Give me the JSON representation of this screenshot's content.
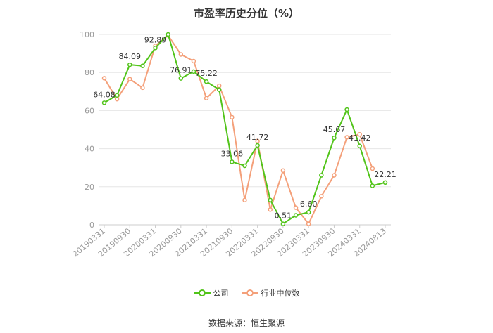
{
  "chart_data": {
    "type": "line",
    "title": "市盈率历史分位（%）",
    "ylim": [
      0,
      100
    ],
    "yticks": [
      "0",
      "20",
      "40",
      "60",
      "80",
      "100"
    ],
    "x_labels": [
      "20190331",
      "20190930",
      "20200331",
      "20200930",
      "20210331",
      "20210930",
      "20220331",
      "20220930",
      "20230331",
      "20230930",
      "20240331",
      "20240813"
    ],
    "x": [
      "20190331",
      "20190630",
      "20190930",
      "20191231",
      "20200331",
      "20200630",
      "20200930",
      "20201231",
      "20210331",
      "20210630",
      "20210930",
      "20211231",
      "20220331",
      "20220630",
      "20220930",
      "20221231",
      "20230331",
      "20230630",
      "20230930",
      "20231231",
      "20240331",
      "20240630",
      "20240813"
    ],
    "series": [
      {
        "name": "公司",
        "color": "#52c41a",
        "values": [
          64.08,
          68,
          84.09,
          83.5,
          92.89,
          100,
          76.91,
          80.5,
          75.22,
          71,
          33.06,
          31,
          41.72,
          13,
          0.51,
          5,
          6.6,
          26,
          45.67,
          60.5,
          41.42,
          20.5,
          22.21
        ]
      },
      {
        "name": "行业中位数",
        "color": "#f4a07a",
        "values": [
          77,
          66,
          76.5,
          72,
          94,
          99.5,
          89.5,
          86,
          66.5,
          73,
          56.5,
          13,
          44,
          8,
          28.5,
          9,
          0.5,
          15,
          26,
          46,
          47.5,
          29.5,
          null
        ]
      }
    ],
    "annotations": [
      {
        "series": 0,
        "index": 0,
        "text": "64.08"
      },
      {
        "series": 0,
        "index": 2,
        "text": "84.09"
      },
      {
        "series": 0,
        "index": 4,
        "text": "92.89"
      },
      {
        "series": 0,
        "index": 6,
        "text": "76.91"
      },
      {
        "series": 0,
        "index": 8,
        "text": "75.22"
      },
      {
        "series": 0,
        "index": 10,
        "text": "33.06"
      },
      {
        "series": 0,
        "index": 12,
        "text": "41.72"
      },
      {
        "series": 0,
        "index": 14,
        "text": "0.51"
      },
      {
        "series": 0,
        "index": 16,
        "text": "6.60"
      },
      {
        "series": 0,
        "index": 18,
        "text": "45.67"
      },
      {
        "series": 0,
        "index": 20,
        "text": "41.42"
      },
      {
        "series": 0,
        "index": 22,
        "text": "22.21"
      }
    ],
    "grid": true,
    "legend_position": "bottom"
  },
  "legend": {
    "company_label": "公司",
    "industry_label": "行业中位数"
  },
  "source": "数据来源：恒生聚源"
}
